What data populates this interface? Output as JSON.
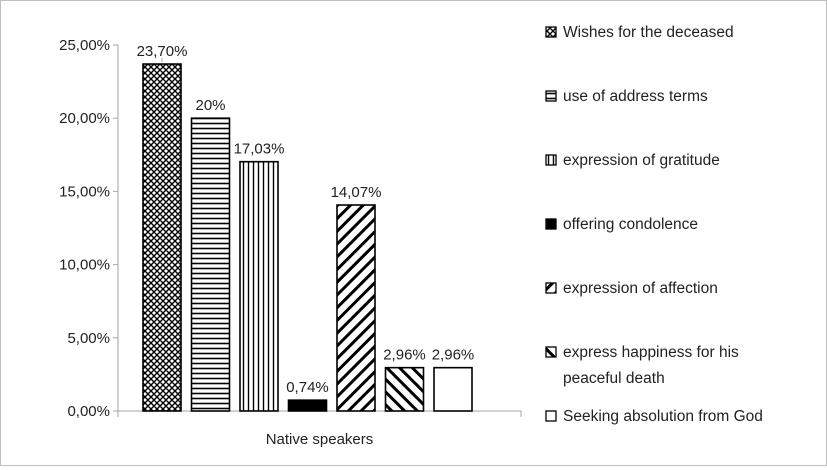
{
  "chart_data": {
    "type": "bar",
    "categories": [
      "Native speakers"
    ],
    "series": [
      {
        "name": "Wishes for the deceased",
        "values": [
          23.7
        ],
        "label": "23,70%",
        "pattern": "crosshatch"
      },
      {
        "name": "use of address terms",
        "values": [
          20.0
        ],
        "label": "20%",
        "pattern": "horizontal"
      },
      {
        "name": "expression of gratitude",
        "values": [
          17.03
        ],
        "label": "17,03%",
        "pattern": "vertical"
      },
      {
        "name": "offering condolence",
        "values": [
          0.74
        ],
        "label": "0,74%",
        "pattern": "solid"
      },
      {
        "name": "expression of affection",
        "values": [
          14.07
        ],
        "label": "14,07%",
        "pattern": "diagonal-up"
      },
      {
        "name": [
          "express happiness for his",
          "peaceful death"
        ],
        "values": [
          2.96
        ],
        "label": "2,96%",
        "pattern": "diagonal-down"
      },
      {
        "name": "Seeking absolution from God",
        "values": [
          2.96
        ],
        "label": "2,96%",
        "pattern": "empty"
      }
    ],
    "y_ticks": [
      "0,00%",
      "5,00%",
      "10,00%",
      "15,00%",
      "20,00%",
      "25,00%"
    ],
    "ylim": [
      0,
      25
    ],
    "grid": false,
    "legend": "right",
    "colors": {
      "stroke": "#000000",
      "fill": "#ffffff",
      "axis": "#a6a6a6"
    }
  }
}
